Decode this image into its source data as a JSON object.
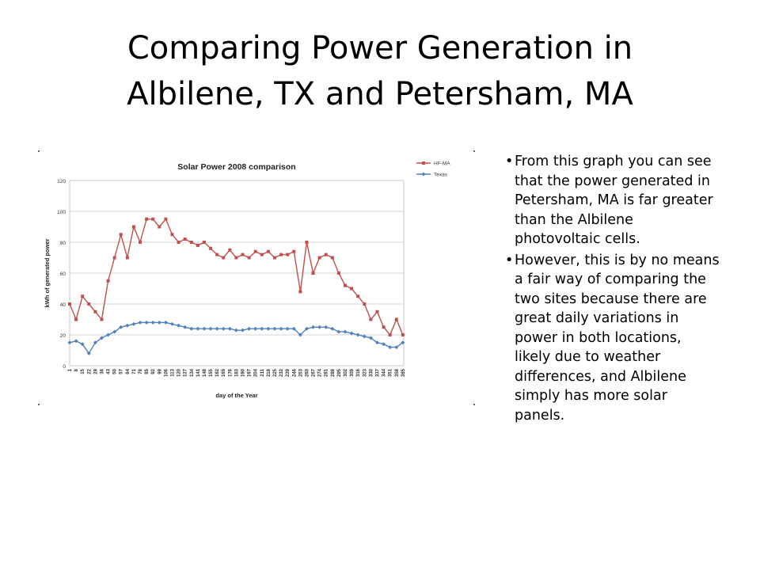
{
  "slide": {
    "title_line1": "Comparing Power Generation in",
    "title_line2": "Albilene, TX and Petersham, MA",
    "bullets": [
      "From this graph you can see that the power generated in Petersham, MA is far greater than the Albilene photovoltaic cells.",
      "However, this is by no means a fair way of comparing the two sites because there are great daily variations in power in both locations, likely due to weather differences, and Albilene simply has more solar panels."
    ],
    "bullet_glyph": "•"
  },
  "chart_data": {
    "type": "line",
    "title": "Solar Power 2008 comparison",
    "xlabel": "day of the Year",
    "ylabel": "kWh of generated power",
    "ylim": [
      0,
      120
    ],
    "yticks": [
      0,
      20,
      40,
      60,
      80,
      100,
      120
    ],
    "xlim": [
      1,
      366
    ],
    "xticks": [
      1,
      8,
      15,
      22,
      29,
      36,
      43,
      50,
      57,
      64,
      71,
      78,
      85,
      92,
      99,
      106,
      113,
      120,
      127,
      134,
      141,
      148,
      155,
      162,
      169,
      176,
      183,
      190,
      197,
      204,
      211,
      218,
      225,
      232,
      239,
      246,
      253,
      260,
      267,
      274,
      281,
      288,
      295,
      302,
      309,
      316,
      323,
      330,
      337,
      344,
      351,
      358,
      365
    ],
    "grid": true,
    "legend_position": "top-right",
    "series": [
      {
        "name": "HF-MA",
        "color": "#c0504d",
        "marker": "square",
        "x": [
          1,
          8,
          15,
          22,
          29,
          36,
          43,
          50,
          57,
          64,
          71,
          78,
          85,
          92,
          99,
          106,
          113,
          120,
          127,
          134,
          141,
          148,
          155,
          162,
          169,
          176,
          183,
          190,
          197,
          204,
          211,
          218,
          225,
          232,
          239,
          246,
          253,
          260,
          267,
          274,
          281,
          288,
          295,
          302,
          309,
          316,
          323,
          330,
          337,
          344,
          351,
          358,
          365
        ],
        "values": [
          40,
          30,
          45,
          40,
          35,
          30,
          55,
          70,
          85,
          70,
          90,
          80,
          95,
          95,
          90,
          95,
          85,
          80,
          82,
          80,
          78,
          80,
          76,
          72,
          70,
          75,
          70,
          72,
          70,
          74,
          72,
          74,
          70,
          72,
          72,
          74,
          48,
          80,
          60,
          70,
          72,
          70,
          60,
          52,
          50,
          45,
          40,
          30,
          35,
          25,
          20,
          30,
          20
        ]
      },
      {
        "name": "Texas",
        "color": "#4f81bd",
        "marker": "diamond",
        "x": [
          1,
          8,
          15,
          22,
          29,
          36,
          43,
          50,
          57,
          64,
          71,
          78,
          85,
          92,
          99,
          106,
          113,
          120,
          127,
          134,
          141,
          148,
          155,
          162,
          169,
          176,
          183,
          190,
          197,
          204,
          211,
          218,
          225,
          232,
          239,
          246,
          253,
          260,
          267,
          274,
          281,
          288,
          295,
          302,
          309,
          316,
          323,
          330,
          337,
          344,
          351,
          358,
          365
        ],
        "values": [
          15,
          16,
          14,
          8,
          15,
          18,
          20,
          22,
          25,
          26,
          27,
          28,
          28,
          28,
          28,
          28,
          27,
          26,
          25,
          24,
          24,
          24,
          24,
          24,
          24,
          24,
          23,
          23,
          24,
          24,
          24,
          24,
          24,
          24,
          24,
          24,
          20,
          24,
          25,
          25,
          25,
          24,
          22,
          22,
          21,
          20,
          19,
          18,
          15,
          14,
          12,
          12,
          15
        ]
      }
    ]
  }
}
